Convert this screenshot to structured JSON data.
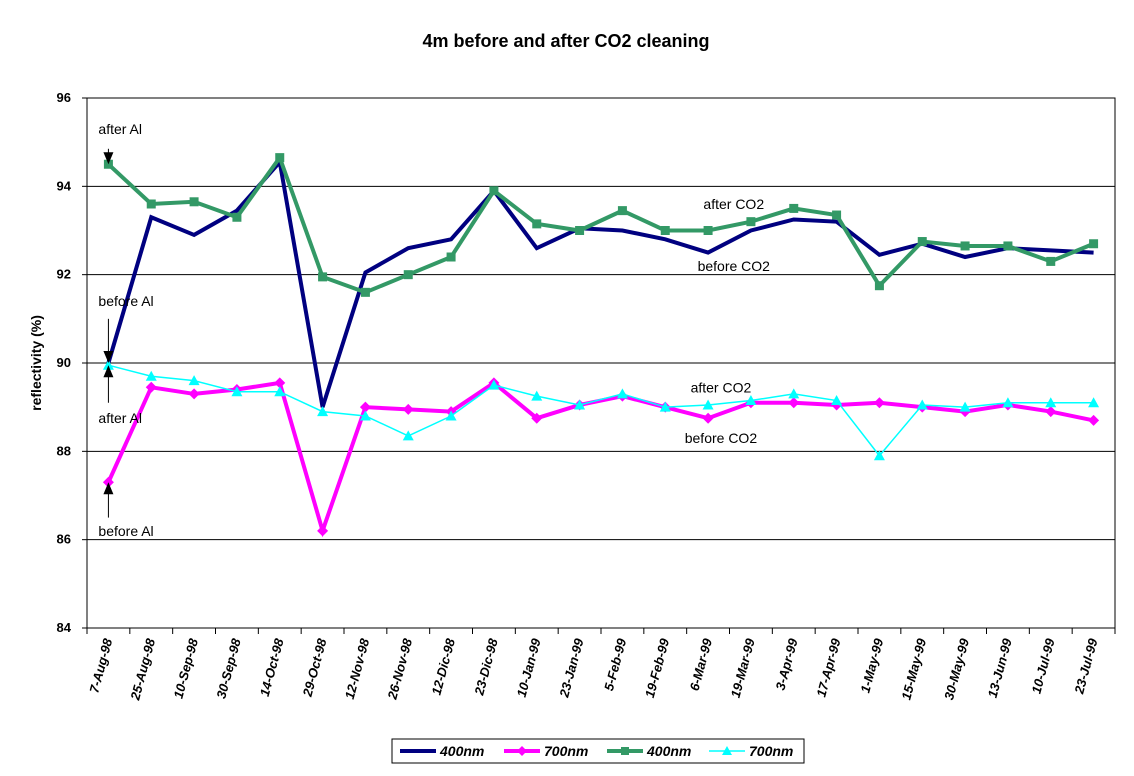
{
  "chart_data": {
    "type": "line",
    "title": "4m before and after CO2 cleaning",
    "ylabel": "reflectivity (%)",
    "xlabel": "",
    "ylim": [
      84,
      96
    ],
    "yticks": [
      "84",
      "86",
      "88",
      "90",
      "92",
      "94",
      "96"
    ],
    "grid": "horizontal",
    "legend_position": "bottom",
    "categories": [
      "7-Aug-98",
      "25-Aug-98",
      "10-Sep-98",
      "30-Sep-98",
      "14-Oct-98",
      "29-Oct-98",
      "12-Nov-98",
      "26-Nov-98",
      "12-Dic-98",
      "23-Dic-98",
      "10-Jan-99",
      "23-Jan-99",
      "5-Feb-99",
      "19-Feb-99",
      "6-Mar-99",
      "19-Mar-99",
      "3-Apr-99",
      "17-Apr-99",
      "1-May-99",
      "15-May-99",
      "30-May-99",
      "13-Jun-99",
      "10-Jul-99",
      "23-Jul-99"
    ],
    "series": [
      {
        "name": "400nm",
        "color": "#000080",
        "marker": "none",
        "width": 4,
        "values": [
          90.0,
          93.3,
          92.9,
          93.45,
          94.55,
          89.0,
          92.05,
          92.6,
          92.8,
          93.9,
          92.6,
          93.05,
          93.0,
          92.8,
          92.5,
          93.0,
          93.25,
          93.2,
          92.45,
          92.7,
          92.4,
          92.6,
          92.55,
          92.5
        ]
      },
      {
        "name": "700nm",
        "color": "#ff00ff",
        "marker": "diamond",
        "width": 4,
        "values": [
          87.3,
          89.45,
          89.3,
          89.4,
          89.55,
          86.2,
          89.0,
          88.95,
          88.9,
          89.55,
          88.75,
          89.05,
          89.25,
          89.0,
          88.75,
          89.1,
          89.1,
          89.05,
          89.1,
          89.0,
          88.9,
          89.05,
          88.9,
          88.7
        ]
      },
      {
        "name": "400nm",
        "color": "#339966",
        "marker": "square",
        "width": 4,
        "values": [
          94.5,
          93.6,
          93.65,
          93.3,
          94.65,
          91.95,
          91.6,
          92.0,
          92.4,
          93.9,
          93.15,
          93.0,
          93.45,
          93.0,
          93.0,
          93.2,
          93.5,
          93.35,
          91.75,
          92.75,
          92.65,
          92.65,
          92.3,
          92.7
        ]
      },
      {
        "name": "700nm",
        "color": "#00ffff",
        "marker": "triangle",
        "width": 1.5,
        "values": [
          89.95,
          89.7,
          89.6,
          89.35,
          89.35,
          88.9,
          88.8,
          88.35,
          88.8,
          89.5,
          89.25,
          89.05,
          89.3,
          89.0,
          89.05,
          89.15,
          89.3,
          89.15,
          87.9,
          89.05,
          89.0,
          89.1,
          89.1,
          89.1
        ]
      }
    ],
    "annotations": [
      {
        "text": "after Al",
        "cat": 0,
        "y": 94.5,
        "arrow_from": 94.85,
        "text_y": 95.3
      },
      {
        "text": "before Al",
        "cat": 0,
        "y": 90.0,
        "arrow_from": 91.0,
        "text_y": 91.4
      },
      {
        "text": "after Al",
        "cat": 0,
        "y": 89.95,
        "arrow_from": 89.1,
        "text_y": 88.75
      },
      {
        "text": "before Al",
        "cat": 0,
        "y": 87.3,
        "arrow_from": 86.5,
        "text_y": 86.2
      },
      {
        "text": "after CO2",
        "cat": 14.6,
        "y": 93.6
      },
      {
        "text": "before CO2",
        "cat": 14.6,
        "y": 92.2
      },
      {
        "text": "after CO2",
        "cat": 14.3,
        "y": 89.45
      },
      {
        "text": "before CO2",
        "cat": 14.3,
        "y": 88.3
      }
    ]
  }
}
